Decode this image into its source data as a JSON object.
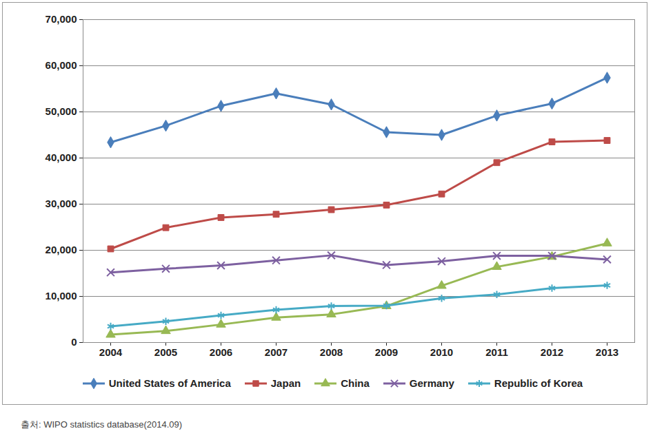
{
  "chart_data": {
    "type": "line",
    "categories": [
      "2004",
      "2005",
      "2006",
      "2007",
      "2008",
      "2009",
      "2010",
      "2011",
      "2012",
      "2013"
    ],
    "series": [
      {
        "name": "United States of America",
        "color": "#4a7ebb",
        "marker": "diamond",
        "values": [
          43400,
          47000,
          51300,
          54000,
          51600,
          45600,
          45000,
          49200,
          51800,
          57400
        ]
      },
      {
        "name": "Japan",
        "color": "#be4b48",
        "marker": "square",
        "values": [
          20300,
          24900,
          27100,
          27800,
          28800,
          29800,
          32200,
          39000,
          43500,
          43800
        ]
      },
      {
        "name": "China",
        "color": "#98b954",
        "marker": "triangle",
        "values": [
          1700,
          2500,
          3900,
          5400,
          6100,
          7900,
          12300,
          16400,
          18600,
          21500
        ]
      },
      {
        "name": "Germany",
        "color": "#7d60a0",
        "marker": "times",
        "values": [
          15200,
          16000,
          16700,
          17800,
          18900,
          16800,
          17600,
          18800,
          18800,
          18000
        ]
      },
      {
        "name": "Republic of Korea",
        "color": "#46aac5",
        "marker": "asterisk",
        "values": [
          3500,
          4600,
          5900,
          7100,
          7900,
          8000,
          9600,
          10400,
          11800,
          12400
        ]
      }
    ],
    "ylim": [
      0,
      70000
    ],
    "yticks": [
      0,
      {
        "value": 10000,
        "label": "10,000"
      },
      {
        "value": 20000,
        "label": "20,000"
      },
      {
        "value": 30000,
        "label": "30,000"
      },
      {
        "value": 40000,
        "label": "40,000"
      },
      {
        "value": 50000,
        "label": "50,000"
      },
      {
        "value": 60000,
        "label": "60,000"
      },
      {
        "value": 70000,
        "label": "70,000"
      }
    ],
    "grid": true,
    "legend": "bottom",
    "source": "출처: WIPO statistics database(2014.09)"
  }
}
